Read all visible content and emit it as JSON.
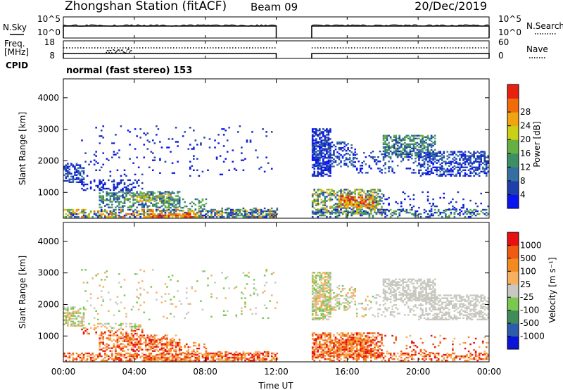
{
  "header": {
    "station": "Zhongshan Station (fitACF)",
    "beam": "Beam 09",
    "date": "20/Dec/2019"
  },
  "noise_panel": {
    "left_label": "N.Sky",
    "left_ticks": [
      "10^5",
      "10^0"
    ],
    "right_label": "N.Search",
    "right_ticks": [
      "10^5",
      "10^0"
    ]
  },
  "freq_panel": {
    "left_label_1": "Freq.",
    "left_label_2": "[MHz]",
    "left_ticks": [
      "18",
      "8"
    ],
    "right_label": "Nave",
    "right_ticks": [
      "60",
      "0"
    ]
  },
  "cpid": {
    "label": "CPID",
    "mode": "normal (fast stereo) 153"
  },
  "colors": {
    "power_scale": [
      "#0a14f0",
      "#1f3fa8",
      "#356ea0",
      "#3e8e64",
      "#66b042",
      "#cad016",
      "#f0a410",
      "#f06c0a",
      "#e82010"
    ],
    "velocity_scale": [
      "#e81010",
      "#f05a10",
      "#f28a20",
      "#f7b060",
      "#c8c8c0",
      "#7ac850",
      "#3f8c5a",
      "#2c5caa",
      "#0a14d8"
    ],
    "gap_start_hour": 12,
    "gap_end_hour": 14
  },
  "chart_data": [
    {
      "type": "heatmap",
      "panel": "power",
      "x_ticks": [
        "00:00",
        "04:00",
        "08:00",
        "12:00",
        "16:00",
        "20:00",
        "00:00"
      ],
      "x_range_hours": [
        0,
        24
      ],
      "ylabel": "Slant Range [km]",
      "y_ticks": [
        "1000",
        "2000",
        "3000",
        "4000"
      ],
      "ylim_km": [
        180,
        4600
      ],
      "colorbar_label": "Power [dB]",
      "colorbar_ticks": [
        "4",
        "8",
        "12",
        "16",
        "20",
        "24",
        "28"
      ],
      "colorbar_range": [
        0,
        32
      ]
    },
    {
      "type": "heatmap",
      "panel": "velocity",
      "x_ticks": [
        "00:00",
        "04:00",
        "08:00",
        "12:00",
        "16:00",
        "20:00",
        "00:00"
      ],
      "x_range_hours": [
        0,
        24
      ],
      "xlabel": "Time UT",
      "ylabel": "Slant Range [km]",
      "y_ticks": [
        "1000",
        "2000",
        "3000",
        "4000"
      ],
      "ylim_km": [
        180,
        4600
      ],
      "colorbar_label": "Velocity  [m s⁻¹]",
      "colorbar_ticks": [
        "1000",
        "500",
        "100",
        "25",
        "-25",
        "-100",
        "-500",
        "-1000"
      ]
    }
  ]
}
